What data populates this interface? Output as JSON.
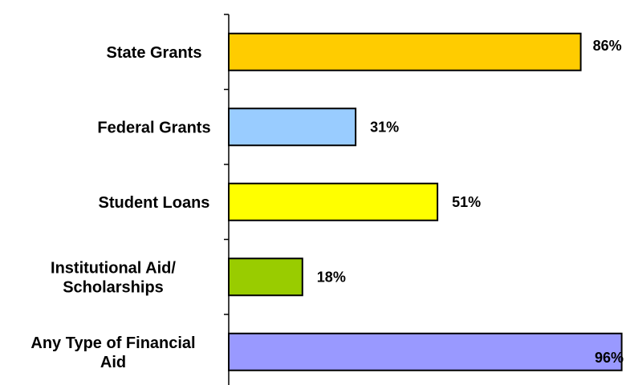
{
  "chart_data": {
    "type": "bar",
    "orientation": "horizontal",
    "categories": [
      [
        "State Grants"
      ],
      [
        "Federal Grants"
      ],
      [
        "Student Loans"
      ],
      [
        "Institutional Aid/",
        "Scholarships"
      ],
      [
        "Any Type of Financial",
        "Aid"
      ]
    ],
    "values": [
      86,
      31,
      51,
      18,
      96
    ],
    "value_labels": [
      "86%",
      "31%",
      "51%",
      "18%",
      "96%"
    ],
    "colors": [
      "#FFCC00",
      "#99CCFF",
      "#FFFF00",
      "#99CC00",
      "#9999FF"
    ],
    "xlim": [
      0,
      100
    ],
    "title": "",
    "xlabel": "",
    "ylabel": "",
    "grid": false,
    "legend": "none"
  }
}
